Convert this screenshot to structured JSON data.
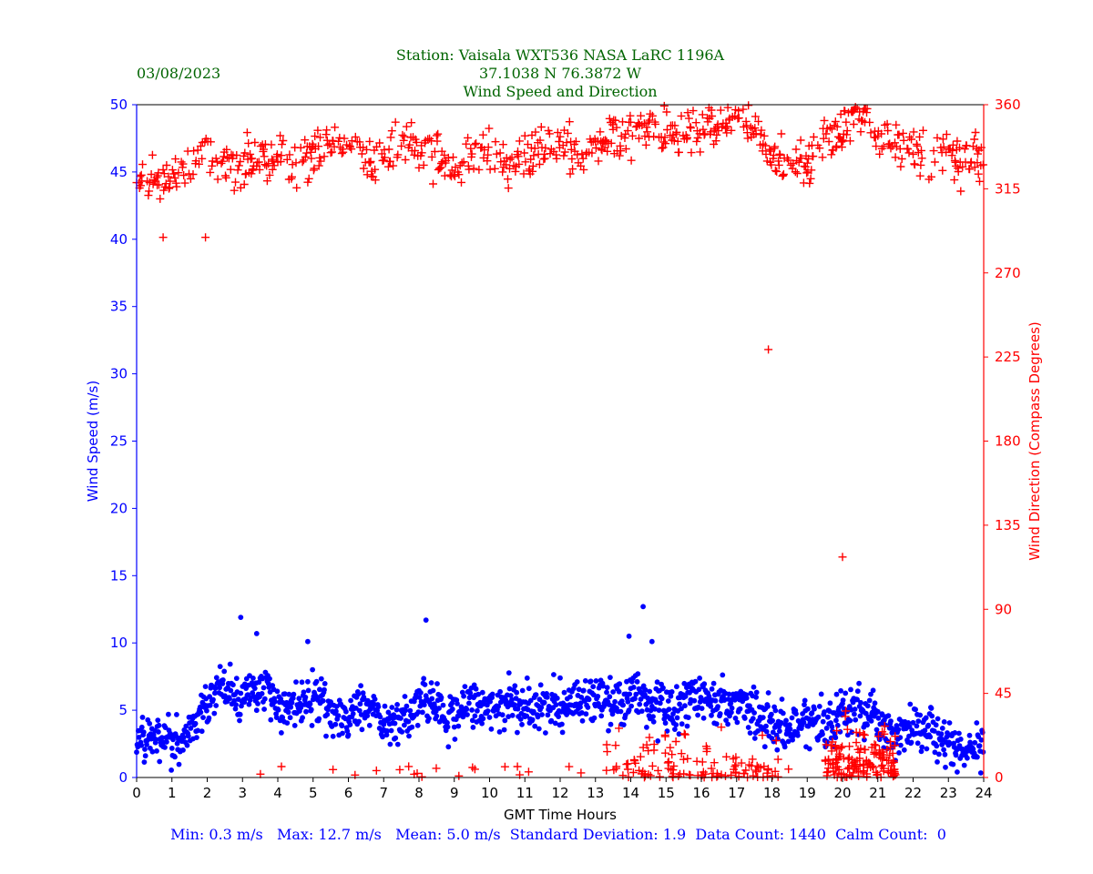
{
  "chart_data": {
    "type": "scatter",
    "title_lines": [
      "Station:  Vaisala WXT536  NASA LaRC 1196A",
      "37.1038 N 76.3872 W",
      "Wind Speed and Direction"
    ],
    "date": "03/08/2023",
    "xlabel": "GMT Time Hours",
    "ylabel_left": "Wind Speed (m/s)",
    "ylabel_right": "Wind Direction (Compass Degrees)",
    "xlim": [
      0,
      24
    ],
    "ylim_left": [
      0,
      50
    ],
    "ylim_right": [
      0,
      360
    ],
    "x_ticks": [
      "0",
      "1",
      "2",
      "3",
      "4",
      "5",
      "6",
      "7",
      "8",
      "9",
      "10",
      "11",
      "12",
      "13",
      "14",
      "15",
      "16",
      "17",
      "18",
      "19",
      "20",
      "21",
      "22",
      "23",
      "24"
    ],
    "y_ticks_left": [
      "0",
      "5",
      "10",
      "15",
      "20",
      "25",
      "30",
      "35",
      "40",
      "45",
      "50"
    ],
    "y_ticks_right": [
      "0",
      "45",
      "90",
      "135",
      "180",
      "225",
      "270",
      "315",
      "360"
    ],
    "series": [
      {
        "name": "Wind Speed",
        "axis": "left",
        "marker": "dot",
        "color": "#0000ff",
        "x": [
          0.0,
          0.25,
          0.5,
          0.75,
          1.0,
          1.25,
          1.5,
          1.75,
          2.0,
          2.25,
          2.5,
          2.75,
          3.0,
          3.25,
          3.5,
          3.75,
          4.0,
          4.25,
          4.5,
          4.75,
          5.0,
          5.25,
          5.5,
          5.75,
          6.0,
          6.25,
          6.5,
          6.75,
          7.0,
          7.25,
          7.5,
          7.75,
          8.0,
          8.25,
          8.5,
          8.75,
          9.0,
          9.25,
          9.5,
          9.75,
          10.0,
          10.25,
          10.5,
          10.75,
          11.0,
          11.25,
          11.5,
          11.75,
          12.0,
          12.25,
          12.5,
          12.75,
          13.0,
          13.25,
          13.5,
          13.75,
          14.0,
          14.25,
          14.5,
          14.75,
          15.0,
          15.25,
          15.5,
          15.75,
          16.0,
          16.25,
          16.5,
          16.75,
          17.0,
          17.25,
          17.5,
          17.75,
          18.0,
          18.25,
          18.5,
          18.75,
          19.0,
          19.25,
          19.5,
          19.75,
          20.0,
          20.25,
          20.5,
          20.75,
          21.0,
          21.25,
          21.5,
          21.75,
          22.0,
          22.25,
          22.5,
          22.75,
          23.0,
          23.25,
          23.5,
          23.75,
          24.0
        ],
        "values": [
          3.2,
          3.0,
          3.0,
          2.6,
          2.5,
          2.8,
          3.5,
          4.5,
          5.5,
          6.2,
          6.6,
          6.3,
          6.0,
          6.5,
          6.8,
          6.6,
          5.2,
          4.8,
          5.5,
          6.2,
          6.5,
          5.8,
          5.0,
          4.5,
          4.8,
          5.2,
          5.6,
          5.0,
          4.0,
          3.8,
          3.8,
          4.8,
          5.5,
          5.8,
          5.2,
          4.6,
          4.8,
          5.2,
          5.5,
          5.3,
          5.2,
          5.4,
          5.6,
          5.5,
          5.2,
          5.0,
          4.8,
          4.8,
          5.0,
          5.3,
          5.6,
          5.4,
          5.6,
          5.4,
          5.4,
          5.6,
          5.8,
          6.0,
          5.8,
          5.5,
          5.3,
          5.0,
          5.4,
          5.8,
          5.6,
          5.8,
          5.8,
          5.4,
          5.2,
          5.2,
          5.0,
          4.4,
          3.6,
          3.4,
          3.6,
          4.0,
          4.2,
          4.2,
          3.8,
          3.6,
          4.5,
          4.8,
          4.8,
          4.8,
          4.5,
          3.8,
          3.0,
          3.2,
          3.8,
          3.8,
          3.6,
          3.2,
          2.6,
          2.2,
          1.8,
          2.0,
          2.8
        ],
        "extremes": {
          "x": [
            2.95,
            14.35,
            8.2,
            3.4,
            4.85,
            13.95,
            14.6
          ],
          "values": [
            11.9,
            12.7,
            11.7,
            10.7,
            10.1,
            10.5,
            10.1
          ]
        }
      },
      {
        "name": "Wind Direction",
        "axis": "right",
        "marker": "plus",
        "color": "#ff0000",
        "x": [
          0.0,
          0.5,
          1.0,
          1.5,
          2.0,
          2.5,
          3.0,
          3.5,
          4.0,
          4.5,
          5.0,
          5.5,
          6.0,
          6.5,
          7.0,
          7.5,
          8.0,
          8.5,
          9.0,
          9.5,
          10.0,
          10.5,
          11.0,
          11.5,
          12.0,
          12.5,
          13.0,
          13.5,
          14.0,
          14.5,
          15.0,
          15.5,
          16.0,
          16.5,
          17.0,
          17.5,
          18.0,
          18.5,
          19.0,
          19.5,
          20.0,
          20.5,
          21.0,
          21.5,
          22.0,
          22.5,
          23.0,
          23.5,
          24.0
        ],
        "values": [
          315,
          320,
          318,
          328,
          333,
          330,
          326,
          333,
          330,
          327,
          333,
          338,
          333,
          330,
          330,
          342,
          338,
          333,
          330,
          331,
          338,
          328,
          333,
          338,
          338,
          333,
          338,
          345,
          345,
          348,
          342,
          343,
          350,
          348,
          352,
          350,
          328,
          330,
          330,
          344,
          345,
          360,
          345,
          340,
          338,
          330,
          335,
          330,
          332
        ],
        "low_cluster": {
          "x_start": 19.5,
          "x_end": 21.5,
          "values": [
            10,
            15,
            5,
            20,
            8,
            12,
            25,
            18,
            6,
            10
          ]
        },
        "outliers": {
          "x": [
            17.9,
            20.0,
            1.95,
            0.75
          ],
          "values": [
            229,
            118,
            289,
            289
          ]
        }
      }
    ],
    "stats": {
      "min": "Min: 0.3 m/s",
      "max": "Max: 12.7 m/s",
      "mean": "Mean: 5.0 m/s",
      "std": "Standard Deviation: 1.9",
      "count": "Data Count: 1440",
      "calm": "Calm Count:  0"
    }
  },
  "colors": {
    "title": "#006400",
    "left_axis": "#0000ff",
    "right_axis": "#ff0000",
    "stats": "#0000ff"
  }
}
